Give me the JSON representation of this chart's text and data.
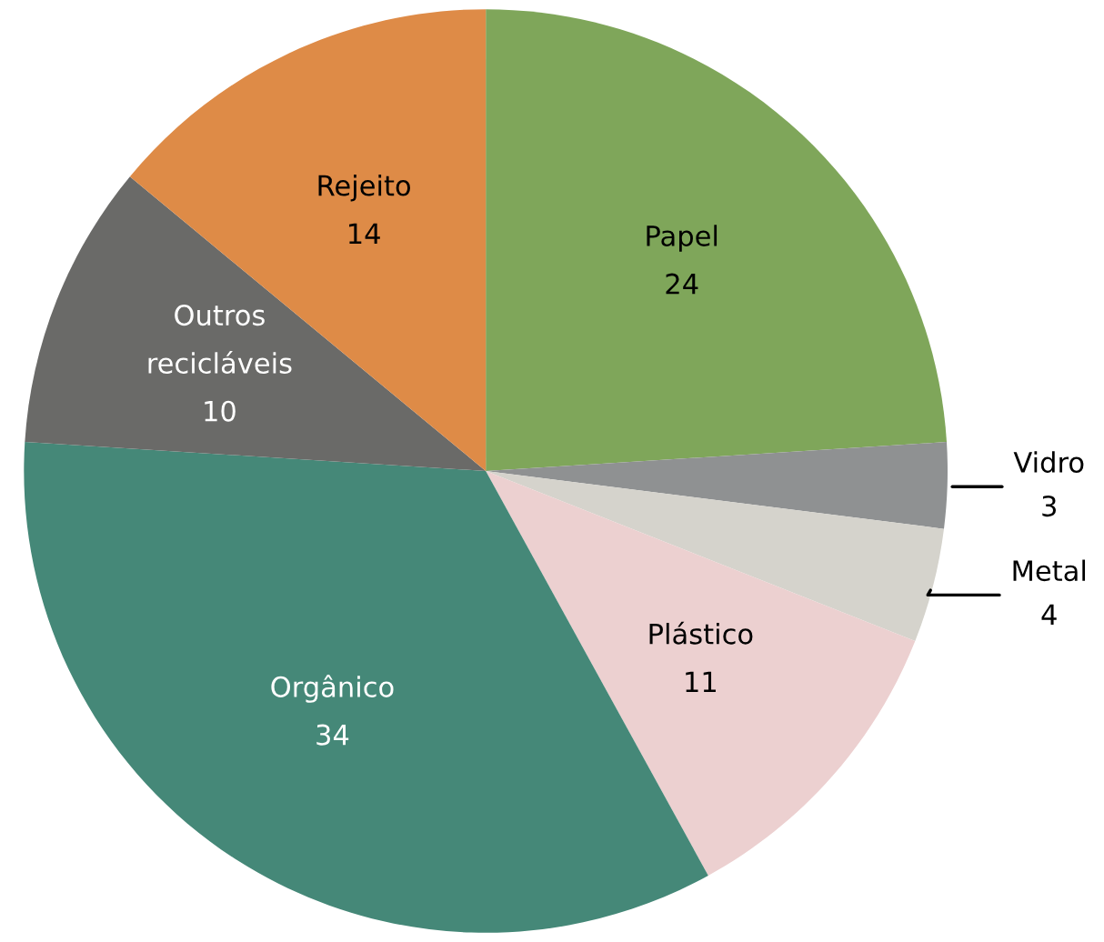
{
  "chart_data": {
    "type": "pie",
    "categories": [
      "Papel",
      "Vidro",
      "Metal",
      "Plástico",
      "Orgânico",
      "Outros recicláveis",
      "Rejeito"
    ],
    "values": [
      24,
      3,
      4,
      11,
      34,
      10,
      14
    ],
    "colors": [
      "#7fa65a",
      "#8f9192",
      "#d5d3cc",
      "#ecd0d0",
      "#458878",
      "#6a6a68",
      "#de8b47"
    ],
    "data_labels": true,
    "legend": false
  }
}
